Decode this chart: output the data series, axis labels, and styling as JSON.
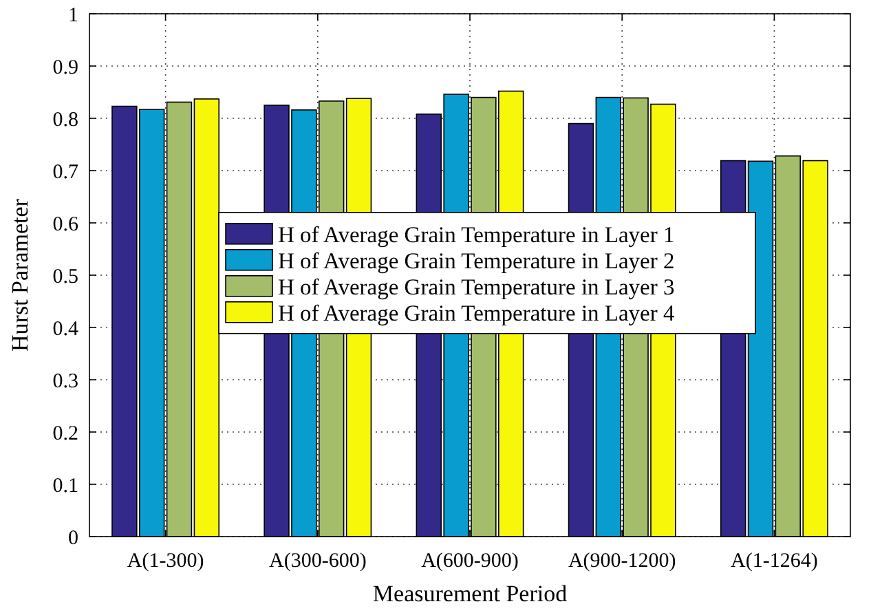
{
  "chart_data": {
    "type": "bar",
    "xlabel": "Measurement Period",
    "ylabel": "Hurst Parameter",
    "categories": [
      "A(1-300)",
      "A(300-600)",
      "A(600-900)",
      "A(900-1200)",
      "A(1-1264)"
    ],
    "series": [
      {
        "name": "H of Average Grain Temperature in Layer 1",
        "color": "#33298a",
        "values": [
          0.823,
          0.825,
          0.808,
          0.79,
          0.719
        ]
      },
      {
        "name": "H of Average Grain Temperature in Layer 2",
        "color": "#089ccf",
        "values": [
          0.817,
          0.816,
          0.846,
          0.84,
          0.718
        ]
      },
      {
        "name": "H of Average Grain Temperature in Layer 3",
        "color": "#a3bd6a",
        "values": [
          0.831,
          0.833,
          0.84,
          0.839,
          0.728
        ]
      },
      {
        "name": "H of Average Grain Temperature in Layer 4",
        "color": "#f7f70a",
        "values": [
          0.837,
          0.838,
          0.852,
          0.827,
          0.719
        ]
      }
    ],
    "ylim": [
      0,
      1
    ],
    "yticks": [
      0,
      0.1,
      0.2,
      0.3,
      0.4,
      0.5,
      0.6,
      0.7,
      0.8,
      0.9,
      1
    ],
    "grid": true,
    "legend": "center"
  }
}
